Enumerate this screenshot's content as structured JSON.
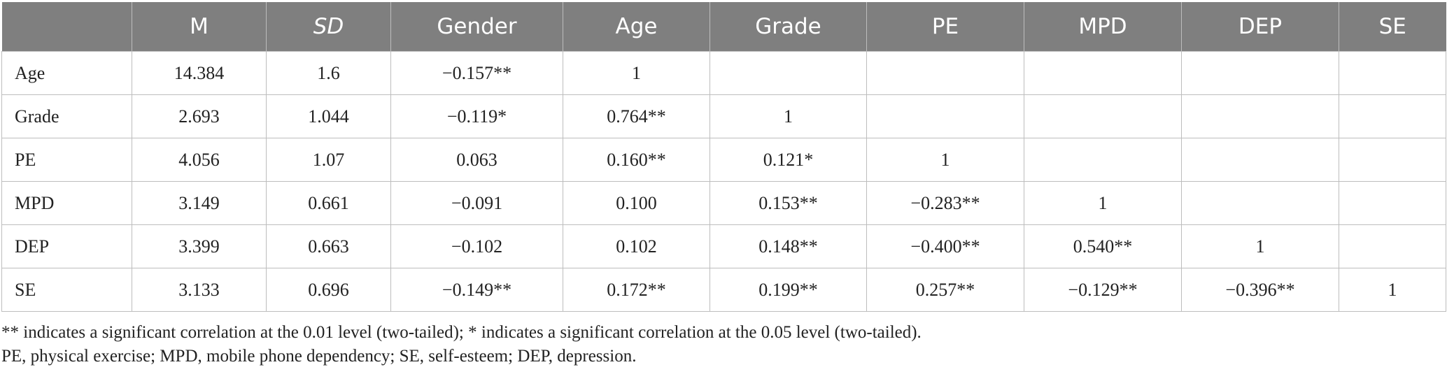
{
  "table": {
    "columns": [
      {
        "label": "",
        "italic": false
      },
      {
        "label": "M",
        "italic": false
      },
      {
        "label": "SD",
        "italic": true
      },
      {
        "label": "Gender",
        "italic": false
      },
      {
        "label": "Age",
        "italic": false
      },
      {
        "label": "Grade",
        "italic": false
      },
      {
        "label": "PE",
        "italic": false
      },
      {
        "label": "MPD",
        "italic": false
      },
      {
        "label": "DEP",
        "italic": false
      },
      {
        "label": "SE",
        "italic": false
      }
    ],
    "rows": [
      {
        "label": "Age",
        "cells": [
          "14.384",
          "1.6",
          "−0.157**",
          "1",
          "",
          "",
          "",
          "",
          ""
        ]
      },
      {
        "label": "Grade",
        "cells": [
          "2.693",
          "1.044",
          "−0.119*",
          "0.764**",
          "1",
          "",
          "",
          "",
          ""
        ]
      },
      {
        "label": "PE",
        "cells": [
          "4.056",
          "1.07",
          "0.063",
          "0.160**",
          "0.121*",
          "1",
          "",
          "",
          ""
        ]
      },
      {
        "label": "MPD",
        "cells": [
          "3.149",
          "0.661",
          "−0.091",
          "0.100",
          "0.153**",
          "−0.283**",
          "1",
          "",
          ""
        ]
      },
      {
        "label": "DEP",
        "cells": [
          "3.399",
          "0.663",
          "−0.102",
          "0.102",
          "0.148**",
          "−0.400**",
          "0.540**",
          "1",
          ""
        ]
      },
      {
        "label": "SE",
        "cells": [
          "3.133",
          "0.696",
          "−0.149**",
          "0.172**",
          "0.199**",
          "0.257**",
          "−0.129**",
          "−0.396**",
          "1"
        ]
      }
    ]
  },
  "notes": {
    "significance": "** indicates a significant correlation at the 0.01 level (two-tailed); * indicates a significant correlation at the 0.05 level (two-tailed).",
    "abbreviations": "PE, physical exercise; MPD, mobile phone dependency; SE, self-esteem; DEP, depression."
  }
}
